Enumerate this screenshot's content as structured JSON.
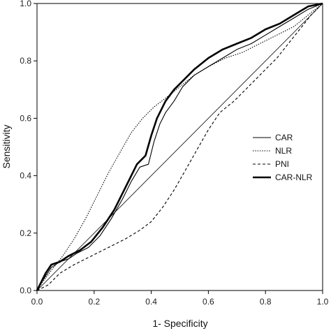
{
  "chart_data": {
    "type": "line",
    "xlabel": "1- Specificity",
    "ylabel": "Sensitivity",
    "xlim": [
      0,
      1
    ],
    "ylim": [
      0,
      1
    ],
    "xticks": [
      "0.0",
      "0.2",
      "0.4",
      "0.6",
      "0.8",
      "1.0"
    ],
    "yticks": [
      "0.0",
      "0.2",
      "0.4",
      "0.6",
      "0.8",
      "1.0"
    ],
    "grid": false,
    "legend_position": "right",
    "reference_line": true,
    "series": [
      {
        "name": "CAR",
        "style": "solid-thin",
        "points": [
          [
            0,
            0
          ],
          [
            0.01,
            0.02
          ],
          [
            0.03,
            0.05
          ],
          [
            0.05,
            0.08
          ],
          [
            0.08,
            0.1
          ],
          [
            0.11,
            0.11
          ],
          [
            0.14,
            0.13
          ],
          [
            0.18,
            0.15
          ],
          [
            0.22,
            0.19
          ],
          [
            0.26,
            0.25
          ],
          [
            0.3,
            0.32
          ],
          [
            0.33,
            0.38
          ],
          [
            0.36,
            0.43
          ],
          [
            0.39,
            0.44
          ],
          [
            0.41,
            0.52
          ],
          [
            0.43,
            0.58
          ],
          [
            0.45,
            0.62
          ],
          [
            0.48,
            0.66
          ],
          [
            0.51,
            0.71
          ],
          [
            0.55,
            0.75
          ],
          [
            0.6,
            0.78
          ],
          [
            0.65,
            0.81
          ],
          [
            0.7,
            0.84
          ],
          [
            0.75,
            0.86
          ],
          [
            0.8,
            0.89
          ],
          [
            0.85,
            0.92
          ],
          [
            0.9,
            0.95
          ],
          [
            0.95,
            0.98
          ],
          [
            1.0,
            1.0
          ]
        ]
      },
      {
        "name": "NLR",
        "style": "dotted",
        "points": [
          [
            0,
            0
          ],
          [
            0.02,
            0.03
          ],
          [
            0.05,
            0.07
          ],
          [
            0.09,
            0.12
          ],
          [
            0.13,
            0.18
          ],
          [
            0.17,
            0.25
          ],
          [
            0.21,
            0.33
          ],
          [
            0.25,
            0.41
          ],
          [
            0.29,
            0.48
          ],
          [
            0.33,
            0.55
          ],
          [
            0.37,
            0.6
          ],
          [
            0.41,
            0.64
          ],
          [
            0.45,
            0.67
          ],
          [
            0.5,
            0.71
          ],
          [
            0.55,
            0.75
          ],
          [
            0.6,
            0.78
          ],
          [
            0.66,
            0.81
          ],
          [
            0.72,
            0.83
          ],
          [
            0.78,
            0.86
          ],
          [
            0.84,
            0.89
          ],
          [
            0.9,
            0.92
          ],
          [
            0.95,
            0.96
          ],
          [
            1.0,
            1.0
          ]
        ]
      },
      {
        "name": "PNI",
        "style": "dashed",
        "points": [
          [
            0,
            0
          ],
          [
            0.04,
            0.02
          ],
          [
            0.08,
            0.06
          ],
          [
            0.13,
            0.09
          ],
          [
            0.19,
            0.12
          ],
          [
            0.25,
            0.15
          ],
          [
            0.31,
            0.18
          ],
          [
            0.36,
            0.21
          ],
          [
            0.4,
            0.24
          ],
          [
            0.44,
            0.29
          ],
          [
            0.48,
            0.35
          ],
          [
            0.52,
            0.42
          ],
          [
            0.56,
            0.49
          ],
          [
            0.6,
            0.56
          ],
          [
            0.64,
            0.62
          ],
          [
            0.69,
            0.66
          ],
          [
            0.74,
            0.71
          ],
          [
            0.79,
            0.76
          ],
          [
            0.84,
            0.81
          ],
          [
            0.88,
            0.86
          ],
          [
            0.92,
            0.91
          ],
          [
            0.96,
            0.96
          ],
          [
            1.0,
            1.0
          ]
        ]
      },
      {
        "name": "CAR-NLR",
        "style": "solid-thick",
        "points": [
          [
            0,
            0
          ],
          [
            0.01,
            0.02
          ],
          [
            0.03,
            0.06
          ],
          [
            0.05,
            0.09
          ],
          [
            0.08,
            0.1
          ],
          [
            0.11,
            0.12
          ],
          [
            0.15,
            0.14
          ],
          [
            0.19,
            0.17
          ],
          [
            0.23,
            0.22
          ],
          [
            0.27,
            0.28
          ],
          [
            0.3,
            0.34
          ],
          [
            0.33,
            0.4
          ],
          [
            0.35,
            0.44
          ],
          [
            0.38,
            0.47
          ],
          [
            0.4,
            0.54
          ],
          [
            0.42,
            0.6
          ],
          [
            0.45,
            0.66
          ],
          [
            0.48,
            0.7
          ],
          [
            0.51,
            0.73
          ],
          [
            0.55,
            0.77
          ],
          [
            0.6,
            0.81
          ],
          [
            0.65,
            0.84
          ],
          [
            0.7,
            0.86
          ],
          [
            0.75,
            0.88
          ],
          [
            0.8,
            0.91
          ],
          [
            0.85,
            0.93
          ],
          [
            0.9,
            0.96
          ],
          [
            0.95,
            0.99
          ],
          [
            1.0,
            1.0
          ]
        ]
      }
    ]
  }
}
